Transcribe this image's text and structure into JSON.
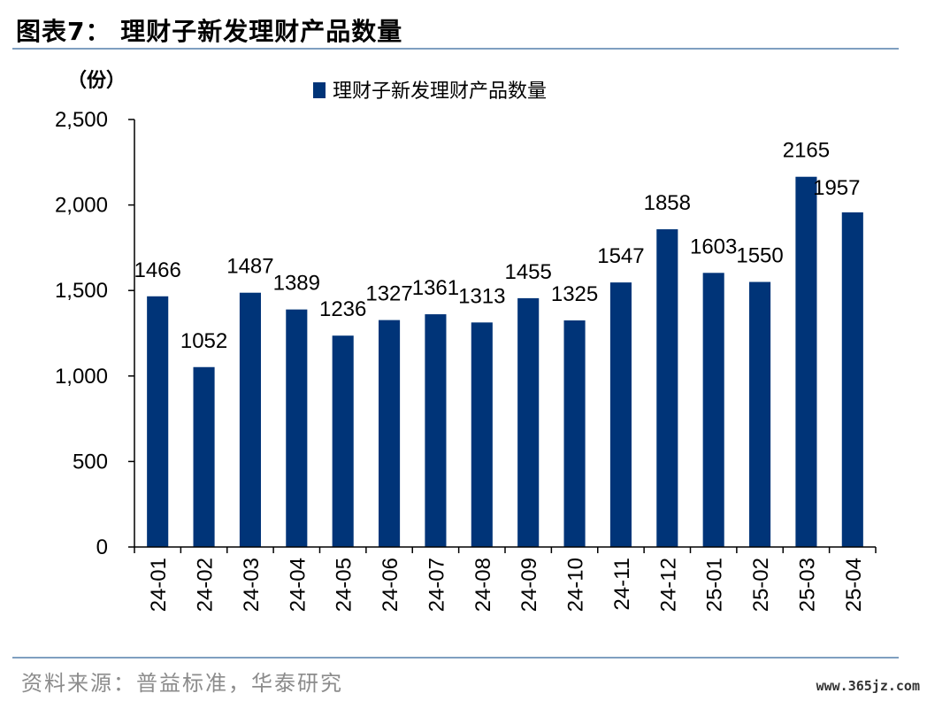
{
  "figure_title": "图表7：  理财子新发理财产品数量",
  "source_note": "资料来源：普益标准，华泰研究",
  "watermark": "www.365jz.com",
  "colors": {
    "bar": "#003478",
    "rule": "#7f9fc0",
    "source_text": "#8c8c8c"
  },
  "chart_data": {
    "type": "bar",
    "title": "",
    "unit_label": "（份）",
    "legend": {
      "entries": [
        "理财子新发理财产品数量"
      ],
      "position": "top-center"
    },
    "categories": [
      "24-01",
      "24-02",
      "24-03",
      "24-04",
      "24-05",
      "24-06",
      "24-07",
      "24-08",
      "24-09",
      "24-10",
      "24-11",
      "24-12",
      "25-01",
      "25-02",
      "25-03",
      "25-04"
    ],
    "series": [
      {
        "name": "理财子新发理财产品数量",
        "values": [
          1466,
          1052,
          1487,
          1389,
          1236,
          1327,
          1361,
          1313,
          1455,
          1325,
          1547,
          1858,
          1603,
          1550,
          2165,
          1957
        ]
      }
    ],
    "data_labels": [
      "1466",
      "1052",
      "1487",
      "1389",
      "1236",
      "1327",
      "1361",
      "1313",
      "1455",
      "1325",
      "1547",
      "1858",
      "1603",
      "1550",
      "2165",
      "1957"
    ],
    "ylim": [
      0,
      2500
    ],
    "yticks": [
      0,
      500,
      1000,
      1500,
      2000,
      2500
    ],
    "ytick_labels": [
      "0",
      "500",
      "1,000",
      "1,500",
      "2,000",
      "2,500"
    ],
    "grid": false
  }
}
